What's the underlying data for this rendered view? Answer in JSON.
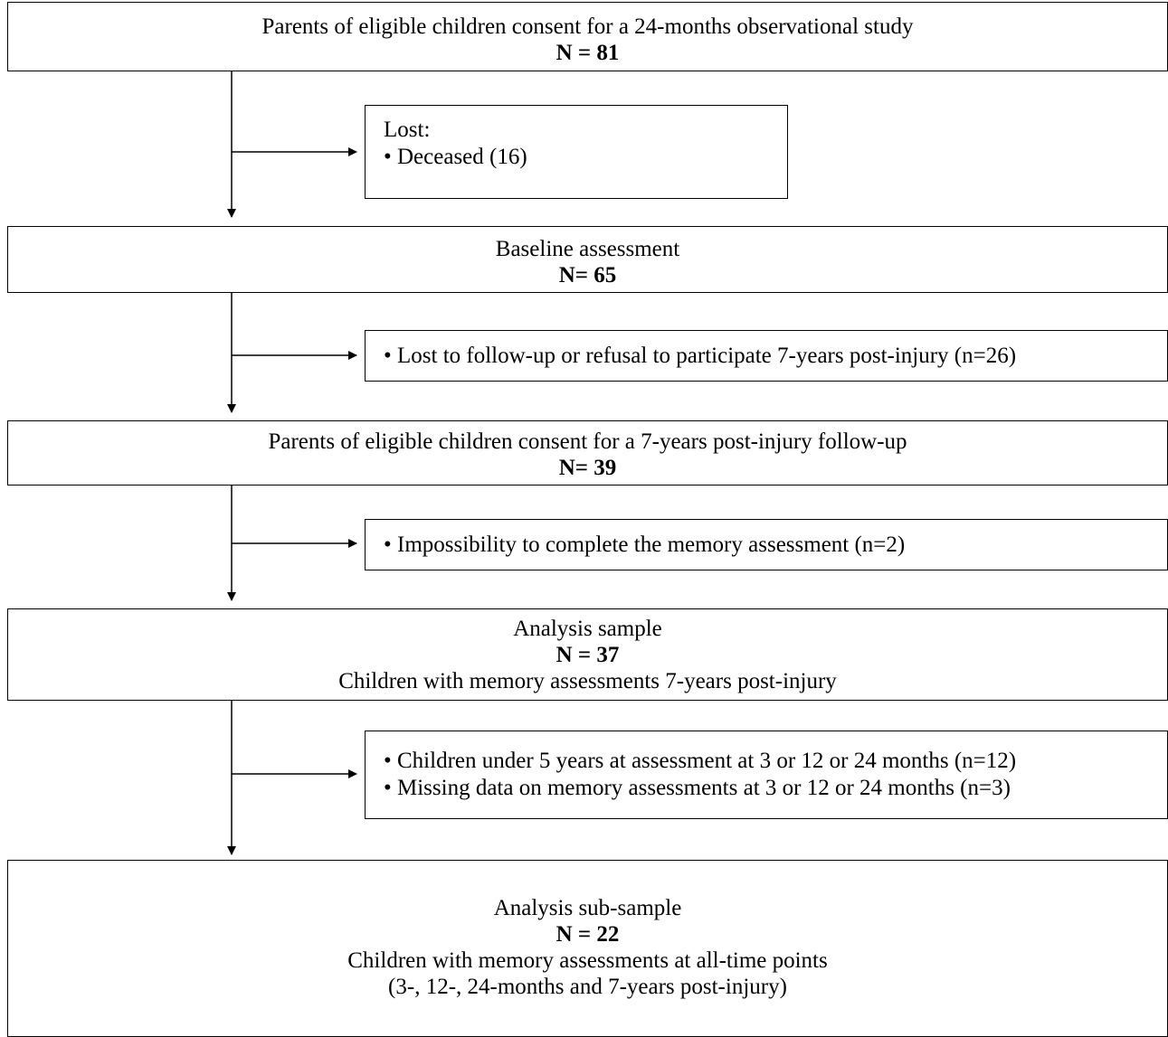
{
  "boxes": {
    "consent": {
      "title": "Parents of eligible children consent for a 24-months observational study",
      "count": "N = 81"
    },
    "lost1": {
      "heading": "Lost:",
      "items": [
        "• Deceased (16)"
      ]
    },
    "baseline": {
      "title": "Baseline assessment",
      "count": "N= 65"
    },
    "lost2": {
      "items": [
        "• Lost to follow-up or refusal to participate 7-years post-injury (n=26)"
      ]
    },
    "followup": {
      "title": "Parents of eligible children consent for a 7-years post-injury follow-up",
      "count": "N= 39"
    },
    "lost3": {
      "items": [
        "• Impossibility to complete the memory assessment (n=2)"
      ]
    },
    "analysis": {
      "title": "Analysis sample",
      "count": "N = 37",
      "subtitle": "Children with memory assessments 7-years post-injury"
    },
    "lost4": {
      "items": [
        "• Children under 5 years at assessment at 3 or 12 or 24 months  (n=12)",
        "• Missing data on memory assessments at 3 or 12 or 24 months (n=3)"
      ]
    },
    "subsample": {
      "title": "Analysis sub-sample",
      "count": "N = 22",
      "subtitle": "Children with memory assessments at all-time points",
      "note": "(3-, 12-, 24-months and 7-years post-injury)"
    }
  }
}
